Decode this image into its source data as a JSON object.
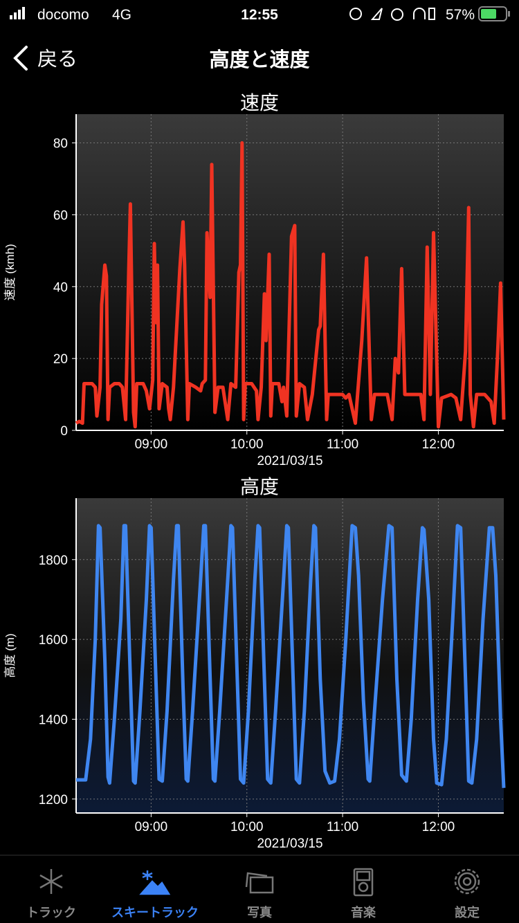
{
  "status_bar": {
    "carrier": "docomo",
    "network": "4G",
    "time": "12:55",
    "battery": "57%"
  },
  "nav": {
    "back": "戻る",
    "title": "高度と速度"
  },
  "chart_data": [
    {
      "type": "line",
      "title": "速度",
      "ylabel": "速度 (kmh)",
      "xlabel": "2021/03/15",
      "x": [
        "08:13",
        "08:15",
        "08:17",
        "08:18",
        "08:23",
        "08:25",
        "08:26",
        "08:28",
        "08:29",
        "08:31",
        "08:32",
        "08:33",
        "08:34",
        "08:37",
        "08:40",
        "08:42",
        "08:44",
        "08:46",
        "08:47",
        "08:49",
        "08:50",
        "08:51",
        "08:55",
        "08:57",
        "08:59",
        "09:01",
        "09:02",
        "09:03",
        "09:04",
        "09:05",
        "09:07",
        "09:10",
        "09:11",
        "09:12",
        "09:14",
        "09:18",
        "09:20",
        "09:21",
        "09:23",
        "09:24",
        "09:28",
        "09:31",
        "09:32",
        "09:34",
        "09:35",
        "09:37",
        "09:38",
        "09:40",
        "09:42",
        "09:45",
        "09:48",
        "09:50",
        "09:53",
        "09:55",
        "09:56",
        "09:57",
        "09:58",
        "09:59",
        "10:03",
        "10:06",
        "10:07",
        "10:09",
        "10:11",
        "10:12",
        "10:14",
        "10:15",
        "10:16",
        "10:20",
        "10:22",
        "10:23",
        "10:25",
        "10:28",
        "10:30",
        "10:31",
        "10:33",
        "10:36",
        "10:38",
        "10:41",
        "10:45",
        "10:46",
        "10:48",
        "10:50",
        "10:51",
        "10:55",
        "11:00",
        "11:02",
        "11:04",
        "11:08",
        "11:12",
        "11:15",
        "11:18",
        "11:20",
        "11:28",
        "11:31",
        "11:33",
        "11:35",
        "11:37",
        "11:39",
        "11:49",
        "11:51",
        "11:53",
        "11:55",
        "11:57",
        "12:00",
        "12:02",
        "12:08",
        "12:11",
        "12:14",
        "12:17",
        "12:19",
        "12:20",
        "12:22",
        "12:24",
        "12:29",
        "12:33",
        "12:35",
        "12:37",
        "12:39",
        "12:41"
      ],
      "series": [
        {
          "color": "#f03322",
          "values": [
            2,
            2.5,
            2,
            13,
            13,
            12,
            4,
            12,
            35,
            46,
            43,
            3,
            12,
            13,
            13,
            12,
            3,
            45,
            63,
            5,
            1,
            13,
            13,
            11,
            6,
            14,
            52,
            30,
            46,
            6,
            13,
            12,
            6,
            3,
            12,
            45,
            58,
            46,
            3,
            13,
            12,
            11,
            13,
            14,
            55,
            37,
            74,
            5,
            12,
            12,
            3,
            13,
            12,
            44,
            46,
            80,
            3,
            13,
            13,
            11,
            3,
            12,
            38,
            25,
            49,
            4,
            13,
            13,
            8,
            12,
            4,
            54,
            57,
            4,
            13,
            12,
            3,
            10,
            28,
            29,
            49,
            3,
            10,
            10,
            10,
            9,
            10,
            2,
            25,
            48,
            3,
            10,
            10,
            3,
            20,
            16,
            45,
            10,
            10,
            3,
            51,
            10,
            55,
            1,
            9,
            10,
            9,
            3,
            22,
            62,
            10,
            1,
            10,
            10,
            8,
            2,
            20,
            41,
            3
          ]
        }
      ],
      "xlim": [
        "08:13",
        "12:41"
      ],
      "xticks": [
        "09:00",
        "10:00",
        "11:00",
        "12:00"
      ],
      "ylim": [
        0,
        88
      ],
      "yticks": [
        0,
        20,
        40,
        60,
        80
      ],
      "grid": true
    },
    {
      "type": "line",
      "title": "高度",
      "ylabel": "高度 (m)",
      "xlabel": "2021/03/15",
      "x": [
        "08:13",
        "08:19",
        "08:22",
        "08:25",
        "08:27",
        "08:28",
        "08:31",
        "08:33",
        "08:34",
        "08:37",
        "08:41",
        "08:43",
        "08:44",
        "08:47",
        "08:49",
        "08:50",
        "08:53",
        "08:57",
        "08:59",
        "09:00",
        "09:03",
        "09:05",
        "09:07",
        "09:10",
        "09:14",
        "09:16",
        "09:17",
        "09:20",
        "09:22",
        "09:23",
        "09:26",
        "09:31",
        "09:33",
        "09:34",
        "09:37",
        "09:39",
        "09:40",
        "09:43",
        "09:48",
        "09:50",
        "09:51",
        "09:54",
        "09:56",
        "09:58",
        "10:01",
        "10:05",
        "10:07",
        "10:08",
        "10:11",
        "10:13",
        "10:15",
        "10:18",
        "10:23",
        "10:25",
        "10:26",
        "10:29",
        "10:31",
        "10:33",
        "10:36",
        "10:40",
        "10:42",
        "10:43",
        "10:46",
        "10:49",
        "10:52",
        "10:55",
        "10:58",
        "11:02",
        "11:06",
        "11:08",
        "11:10",
        "11:13",
        "11:16",
        "11:17",
        "11:20",
        "11:25",
        "11:29",
        "11:31",
        "11:34",
        "11:37",
        "11:40",
        "11:43",
        "11:47",
        "11:50",
        "11:51",
        "11:54",
        "11:57",
        "11:59",
        "12:02",
        "12:05",
        "12:09",
        "12:12",
        "12:14",
        "12:17",
        "12:19",
        "12:21",
        "12:24",
        "12:28",
        "12:32",
        "12:34",
        "12:36",
        "12:39",
        "12:41"
      ],
      "series": [
        {
          "color": "#3f86f0",
          "values": [
            1248,
            1248,
            1350,
            1600,
            1885,
            1880,
            1550,
            1255,
            1240,
            1400,
            1650,
            1885,
            1885,
            1500,
            1245,
            1240,
            1420,
            1700,
            1885,
            1880,
            1500,
            1250,
            1245,
            1420,
            1750,
            1885,
            1885,
            1480,
            1250,
            1245,
            1420,
            1750,
            1885,
            1885,
            1500,
            1250,
            1245,
            1420,
            1750,
            1885,
            1880,
            1500,
            1250,
            1240,
            1420,
            1750,
            1885,
            1880,
            1500,
            1250,
            1240,
            1420,
            1750,
            1885,
            1880,
            1500,
            1250,
            1240,
            1420,
            1750,
            1885,
            1880,
            1500,
            1270,
            1240,
            1245,
            1350,
            1600,
            1885,
            1880,
            1760,
            1450,
            1250,
            1245,
            1420,
            1700,
            1885,
            1880,
            1500,
            1260,
            1245,
            1400,
            1700,
            1880,
            1875,
            1700,
            1350,
            1240,
            1236,
            1350,
            1650,
            1885,
            1880,
            1500,
            1245,
            1240,
            1350,
            1650,
            1880,
            1880,
            1760,
            1400,
            1228
          ]
        }
      ],
      "xlim": [
        "08:13",
        "12:41"
      ],
      "xticks": [
        "09:00",
        "10:00",
        "11:00",
        "12:00"
      ],
      "ylim": [
        1165,
        1954
      ],
      "yticks": [
        1200,
        1400,
        1600,
        1800
      ],
      "grid": true
    }
  ],
  "tab_bar": {
    "items": [
      "トラック",
      "スキートラック",
      "写真",
      "音楽",
      "設定"
    ],
    "active": 1
  }
}
